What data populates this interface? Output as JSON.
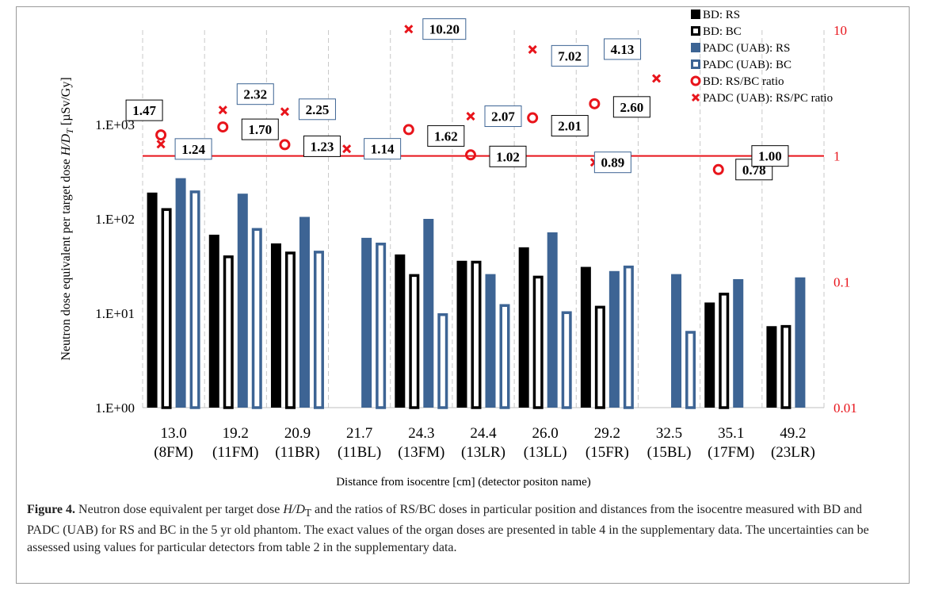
{
  "chart_data": {
    "type": "bar",
    "xlabel": "Distance from isocentre [cm] (detector positon name)",
    "ylabel_left_prefix": "Neutron dose equivalent per target dose ",
    "ylabel_left_var": "H/D",
    "ylabel_left_sub": "T",
    "ylabel_left_unit": " [µSv/Gy]",
    "y_scale": "log",
    "ylim": [
      1,
      10000
    ],
    "y2_scale": "log",
    "y2lim": [
      0.01,
      10
    ],
    "grid": "vertical-dashed",
    "legend_position": "top-right",
    "categories": [
      "13.0",
      "19.2",
      "20.9",
      "21.7",
      "24.3",
      "24.4",
      "26.0",
      "29.2",
      "32.5",
      "35.1",
      "49.2"
    ],
    "category_sublabels": [
      "(8FM)",
      "(11FM)",
      "(11BR)",
      "(11BL)",
      "(13FM)",
      "(13LR)",
      "(13LL)",
      "(15FR)",
      "(15BL)",
      "(17FM)",
      "(23LR)"
    ],
    "y_ticks": [
      "1.E+00",
      "1.E+01",
      "1.E+02",
      "1.E+03"
    ],
    "y2_ticks": [
      "0.01",
      "0.1",
      "1",
      "10"
    ],
    "series": [
      {
        "name": "BD: RS",
        "style": "solid",
        "color": "#000000",
        "values": [
          190,
          68,
          55,
          null,
          42,
          36,
          50,
          31,
          null,
          13,
          7.3
        ]
      },
      {
        "name": "BD: BC",
        "style": "outline",
        "color": "#000000",
        "values": [
          130,
          41,
          45,
          null,
          26,
          36,
          25,
          12,
          null,
          16.5,
          7.5
        ]
      },
      {
        "name": "PADC (UAB): RS",
        "style": "solid",
        "color": "#3d6494",
        "values": [
          270,
          185,
          105,
          63,
          100,
          26,
          72,
          28,
          26,
          23,
          24
        ]
      },
      {
        "name": "PADC (UAB): BC",
        "style": "outline",
        "color": "#3d6494",
        "values": [
          200,
          80,
          46,
          56,
          10,
          12.5,
          10.5,
          32,
          6.5,
          null,
          null
        ]
      }
    ],
    "ratio_series": [
      {
        "name": "BD: RS/BC ratio",
        "marker": "circle",
        "color": "#e8141b",
        "values": [
          1.47,
          1.7,
          1.23,
          null,
          1.62,
          1.02,
          2.01,
          2.6,
          null,
          0.78,
          1.0
        ]
      },
      {
        "name": "PADC (UAB): RS/PC ratio",
        "marker": "x",
        "color": "#e8141b",
        "values": [
          1.24,
          2.32,
          2.25,
          1.14,
          10.2,
          2.07,
          7.02,
          0.89,
          4.13,
          null,
          null
        ]
      }
    ],
    "ratio_labels": [
      {
        "text": "1.47",
        "box": "black"
      },
      {
        "text": "1.70",
        "box": "black"
      },
      {
        "text": "1.23",
        "box": "black"
      },
      {
        "text": "1.62",
        "box": "black"
      },
      {
        "text": "1.02",
        "box": "black"
      },
      {
        "text": "2.01",
        "box": "black"
      },
      {
        "text": "2.60",
        "box": "black"
      },
      {
        "text": "0.78",
        "box": "black"
      },
      {
        "text": "1.00",
        "box": "black"
      },
      {
        "text": "1.24",
        "box": "blue"
      },
      {
        "text": "2.32",
        "box": "blue"
      },
      {
        "text": "2.25",
        "box": "blue"
      },
      {
        "text": "1.14",
        "box": "blue"
      },
      {
        "text": "10.20",
        "box": "blue"
      },
      {
        "text": "2.07",
        "box": "blue"
      },
      {
        "text": "7.02",
        "box": "blue"
      },
      {
        "text": "0.89",
        "box": "blue"
      },
      {
        "text": "4.13",
        "box": "blue"
      }
    ],
    "reference_line_y2": 1
  },
  "caption": {
    "label": "Figure 4.",
    "text_1": " Neutron dose equivalent per target dose ",
    "var": "H/D",
    "sub": "T",
    "text_2": " and the ratios of RS/BC doses in particular position and distances from the isocentre measured with BD and PADC (UAB) for RS and BC in the 5 yr old phantom. The exact values of the organ doses are presented in table 4 in the supplementary data. The uncertainties can be assessed using values for particular detectors from table 2 in the supplementary data."
  }
}
